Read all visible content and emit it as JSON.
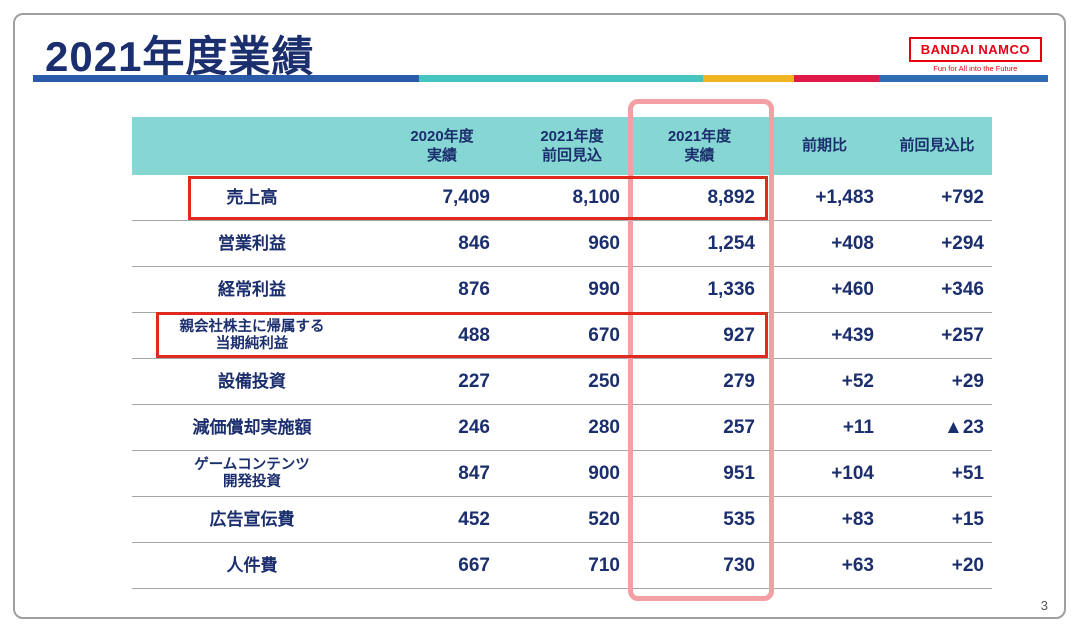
{
  "slide": {
    "title": "2021年度業績",
    "page_number": "3"
  },
  "logo": {
    "brand": "BANDAI NAMCO",
    "tagline": "Fun for All into the Future"
  },
  "colors": {
    "navy_text": "#1b2e6d",
    "header_teal": "#86d6d3",
    "highlight_red": "#df2a20",
    "highlight_pink": "#f2a0a3",
    "logo_red": "#e60012",
    "bar_blue": "#2a5caa",
    "bar_teal": "#45c4c0",
    "bar_yellow": "#f0b322",
    "bar_crimson": "#e0194b",
    "bar_blue2": "#2f6eb5"
  },
  "table": {
    "headers": [
      {
        "line1": "2020年度",
        "line2": "実績"
      },
      {
        "line1": "2021年度",
        "line2": "前回見込"
      },
      {
        "line1": "2021年度",
        "line2": "実績"
      },
      {
        "line1": "前期比",
        "line2": ""
      },
      {
        "line1": "前回見込比",
        "line2": ""
      }
    ],
    "rows": [
      {
        "label1": "売上高",
        "label2": "",
        "fy2020": "7,409",
        "fy2021_forecast": "8,100",
        "fy2021_actual": "8,892",
        "yoy": "+1,483",
        "vs_forecast": "+792"
      },
      {
        "label1": "営業利益",
        "label2": "",
        "fy2020": "846",
        "fy2021_forecast": "960",
        "fy2021_actual": "1,254",
        "yoy": "+408",
        "vs_forecast": "+294"
      },
      {
        "label1": "経常利益",
        "label2": "",
        "fy2020": "876",
        "fy2021_forecast": "990",
        "fy2021_actual": "1,336",
        "yoy": "+460",
        "vs_forecast": "+346"
      },
      {
        "label1": "親会社株主に帰属する",
        "label2": "当期純利益",
        "fy2020": "488",
        "fy2021_forecast": "670",
        "fy2021_actual": "927",
        "yoy": "+439",
        "vs_forecast": "+257"
      },
      {
        "label1": "設備投資",
        "label2": "",
        "fy2020": "227",
        "fy2021_forecast": "250",
        "fy2021_actual": "279",
        "yoy": "+52",
        "vs_forecast": "+29"
      },
      {
        "label1": "減価償却実施額",
        "label2": "",
        "fy2020": "246",
        "fy2021_forecast": "280",
        "fy2021_actual": "257",
        "yoy": "+11",
        "vs_forecast": "▲23"
      },
      {
        "label1": "ゲームコンテンツ",
        "label2": "開発投資",
        "fy2020": "847",
        "fy2021_forecast": "900",
        "fy2021_actual": "951",
        "yoy": "+104",
        "vs_forecast": "+51"
      },
      {
        "label1": "広告宣伝費",
        "label2": "",
        "fy2020": "452",
        "fy2021_forecast": "520",
        "fy2021_actual": "535",
        "yoy": "+83",
        "vs_forecast": "+15"
      },
      {
        "label1": "人件費",
        "label2": "",
        "fy2020": "667",
        "fy2021_forecast": "710",
        "fy2021_actual": "730",
        "yoy": "+63",
        "vs_forecast": "+20"
      }
    ]
  }
}
